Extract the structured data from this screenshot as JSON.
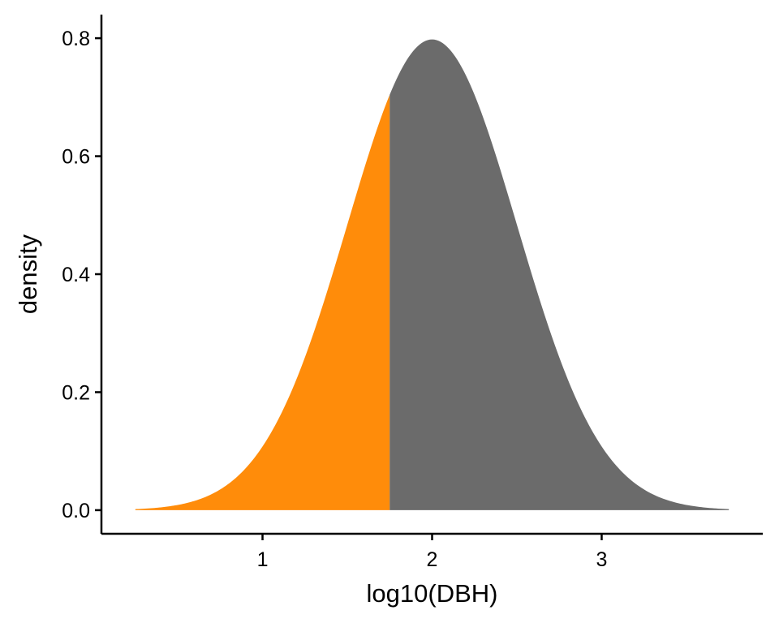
{
  "chart_data": {
    "type": "area",
    "title": "",
    "xlabel": "log10(DBH)",
    "ylabel": "density",
    "xlim": [
      0.05,
      3.95
    ],
    "ylim": [
      -0.04,
      0.84
    ],
    "x_ticks": [
      1,
      2,
      3
    ],
    "y_ticks": [
      0.0,
      0.2,
      0.4,
      0.6,
      0.8
    ],
    "y_tick_labels": [
      "0.0",
      "0.2",
      "0.4",
      "0.6",
      "0.8"
    ],
    "grid": false,
    "legend": "none",
    "curve": {
      "distribution": "normal",
      "mean": 2.0,
      "sd": 0.5,
      "x_range": [
        0.25,
        3.75
      ],
      "peak_density": 0.798
    },
    "split_x": 1.75,
    "regions": [
      {
        "x_range": [
          0.25,
          1.75
        ],
        "color": "#FF8C0A"
      },
      {
        "x_range": [
          1.75,
          3.75
        ],
        "color": "#6B6B6B"
      }
    ]
  }
}
